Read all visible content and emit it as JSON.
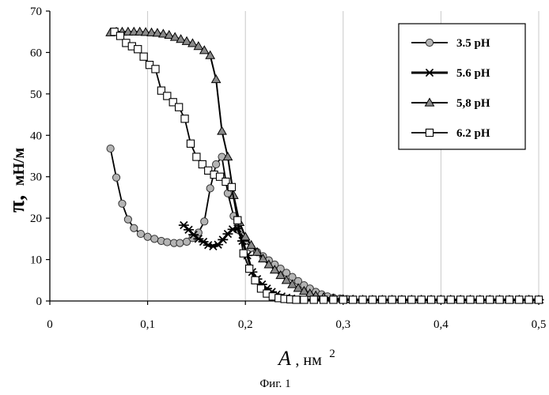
{
  "chart_data": {
    "type": "line",
    "xlabel": "A",
    "xlabel_unit": ", нм",
    "xlabel_sup": "2",
    "ylabel_symbol": "π,",
    "ylabel_unit": "мН/м",
    "xlim": [
      0,
      0.5
    ],
    "ylim": [
      0,
      70
    ],
    "x_ticks": [
      0,
      0.1,
      0.2,
      0.3,
      0.4,
      0.5
    ],
    "x_tick_labels": [
      "0",
      "0,1",
      "0,2",
      "0,3",
      "0,4",
      "0,5"
    ],
    "y_ticks": [
      0,
      10,
      20,
      30,
      40,
      50,
      60,
      70
    ],
    "y_tick_labels": [
      "0",
      "10",
      "20",
      "30",
      "40",
      "50",
      "60",
      "70"
    ],
    "grid": "vertical",
    "legend_position": "top-right",
    "caption": "Фиг. 1",
    "series": [
      {
        "name": "3.5 pH",
        "marker": "circle",
        "x": [
          0.062,
          0.068,
          0.074,
          0.08,
          0.086,
          0.093,
          0.1,
          0.107,
          0.114,
          0.12,
          0.127,
          0.133,
          0.14,
          0.146,
          0.152,
          0.158,
          0.164,
          0.17,
          0.176,
          0.182,
          0.188,
          0.194,
          0.2,
          0.206,
          0.212,
          0.218,
          0.224,
          0.23,
          0.236,
          0.242,
          0.248,
          0.254,
          0.26,
          0.266,
          0.272,
          0.278,
          0.284,
          0.29,
          0.297,
          0.304,
          0.31,
          0.32,
          0.33,
          0.34,
          0.35,
          0.36,
          0.37,
          0.38,
          0.39,
          0.4,
          0.41,
          0.42,
          0.43,
          0.44,
          0.45,
          0.46,
          0.47,
          0.48,
          0.49,
          0.5
        ],
        "y": [
          36.8,
          29.8,
          23.5,
          19.7,
          17.6,
          16.2,
          15.5,
          15.0,
          14.5,
          14.2,
          14.0,
          14.0,
          14.3,
          15.2,
          16.5,
          19.2,
          27.2,
          33.0,
          34.8,
          26.0,
          20.5,
          17.0,
          14.5,
          12.8,
          11.8,
          10.8,
          9.8,
          8.8,
          7.8,
          6.8,
          5.8,
          4.8,
          3.8,
          3.0,
          2.2,
          1.6,
          1.1,
          0.8,
          0.6,
          0.45,
          0.35,
          0.3,
          0.3,
          0.3,
          0.3,
          0.3,
          0.3,
          0.3,
          0.3,
          0.3,
          0.3,
          0.3,
          0.3,
          0.3,
          0.3,
          0.3,
          0.3,
          0.3,
          0.3,
          0.3
        ]
      },
      {
        "name": "5.6 pH",
        "marker": "asterisk",
        "x": [
          0.137,
          0.142,
          0.147,
          0.152,
          0.157,
          0.162,
          0.167,
          0.172,
          0.177,
          0.182,
          0.187,
          0.192,
          0.197,
          0.202,
          0.207,
          0.212,
          0.217,
          0.222,
          0.227,
          0.232,
          0.237,
          0.242,
          0.247,
          0.252,
          0.26,
          0.27,
          0.28,
          0.29,
          0.3,
          0.31,
          0.32,
          0.33,
          0.34,
          0.35,
          0.36,
          0.37,
          0.38,
          0.39,
          0.4,
          0.41,
          0.42,
          0.43,
          0.44,
          0.45,
          0.46,
          0.47,
          0.48,
          0.49,
          0.5
        ],
        "y": [
          18.3,
          17.2,
          16.0,
          15.0,
          14.3,
          13.5,
          13.2,
          13.6,
          14.8,
          16.2,
          17.3,
          17.5,
          14.5,
          11.0,
          7.0,
          5.3,
          4.0,
          3.0,
          2.2,
          1.6,
          1.1,
          0.8,
          0.6,
          0.4,
          0.3,
          0.3,
          0.3,
          0.3,
          0.3,
          0.3,
          0.3,
          0.3,
          0.3,
          0.3,
          0.3,
          0.3,
          0.3,
          0.3,
          0.3,
          0.3,
          0.3,
          0.3,
          0.3,
          0.3,
          0.3,
          0.3,
          0.3,
          0.3,
          0.3
        ]
      },
      {
        "name": "5,8 pH",
        "marker": "triangle",
        "x": [
          0.062,
          0.068,
          0.074,
          0.08,
          0.086,
          0.092,
          0.098,
          0.104,
          0.11,
          0.116,
          0.122,
          0.128,
          0.134,
          0.14,
          0.146,
          0.152,
          0.158,
          0.164,
          0.17,
          0.176,
          0.182,
          0.188,
          0.194,
          0.2,
          0.206,
          0.212,
          0.218,
          0.224,
          0.23,
          0.236,
          0.242,
          0.248,
          0.254,
          0.26,
          0.266,
          0.272,
          0.28,
          0.29,
          0.3,
          0.31,
          0.32,
          0.33,
          0.34,
          0.35,
          0.36,
          0.37,
          0.38,
          0.39,
          0.4,
          0.41,
          0.42,
          0.43,
          0.44,
          0.45,
          0.46,
          0.47,
          0.48,
          0.49,
          0.5
        ],
        "y": [
          64.8,
          65.0,
          65.0,
          65.0,
          65.0,
          65.0,
          64.9,
          64.8,
          64.7,
          64.5,
          64.2,
          63.7,
          63.2,
          62.7,
          62.2,
          61.5,
          60.5,
          59.3,
          53.5,
          41.0,
          34.8,
          25.5,
          19.0,
          15.5,
          13.5,
          11.8,
          10.2,
          8.8,
          7.5,
          6.2,
          5.0,
          4.0,
          3.1,
          2.4,
          1.8,
          1.3,
          0.9,
          0.6,
          0.45,
          0.35,
          0.3,
          0.3,
          0.3,
          0.3,
          0.3,
          0.3,
          0.3,
          0.3,
          0.3,
          0.3,
          0.3,
          0.3,
          0.3,
          0.3,
          0.3,
          0.3,
          0.3,
          0.3,
          0.3
        ]
      },
      {
        "name": "6.2 pH",
        "marker": "square",
        "x": [
          0.066,
          0.072,
          0.078,
          0.084,
          0.09,
          0.096,
          0.102,
          0.108,
          0.114,
          0.12,
          0.126,
          0.132,
          0.138,
          0.144,
          0.15,
          0.156,
          0.162,
          0.168,
          0.174,
          0.18,
          0.186,
          0.192,
          0.198,
          0.204,
          0.21,
          0.216,
          0.222,
          0.228,
          0.234,
          0.24,
          0.246,
          0.252,
          0.26,
          0.27,
          0.28,
          0.29,
          0.3,
          0.31,
          0.32,
          0.33,
          0.34,
          0.35,
          0.36,
          0.37,
          0.38,
          0.39,
          0.4,
          0.41,
          0.42,
          0.43,
          0.44,
          0.45,
          0.46,
          0.47,
          0.48,
          0.49,
          0.5
        ],
        "y": [
          65.0,
          64.0,
          62.3,
          61.5,
          60.8,
          59.0,
          57.0,
          56.0,
          50.8,
          49.5,
          48.0,
          46.8,
          44.0,
          38.0,
          34.8,
          33.0,
          31.5,
          30.5,
          30.0,
          28.8,
          27.5,
          19.5,
          11.5,
          7.8,
          5.0,
          3.0,
          1.8,
          1.1,
          0.7,
          0.5,
          0.4,
          0.3,
          0.3,
          0.3,
          0.3,
          0.3,
          0.3,
          0.3,
          0.3,
          0.3,
          0.3,
          0.3,
          0.3,
          0.3,
          0.3,
          0.3,
          0.3,
          0.3,
          0.3,
          0.3,
          0.3,
          0.3,
          0.3,
          0.3,
          0.3,
          0.3,
          0.3
        ]
      }
    ]
  }
}
